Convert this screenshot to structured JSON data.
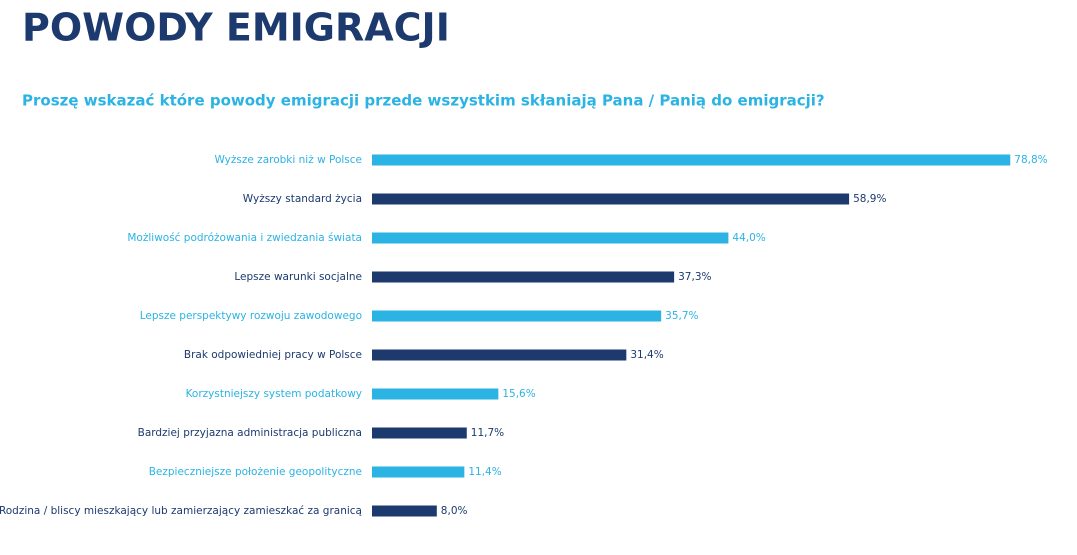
{
  "chart_data": {
    "type": "bar",
    "orientation": "horizontal",
    "title": "POWODY EMIGRACJI",
    "subtitle": "Proszę wskazać które powody emigracji przede wszystkim skłaniają Pana / Panią do emigracji?",
    "categories": [
      "Wyższe zarobki niż w Polsce",
      "Wyższy standard życia",
      "Możliwość podróżowania i zwiedzania świata",
      "Lepsze warunki socjalne",
      "Lepsze perspektywy rozwoju zawodowego",
      "Brak odpowiedniej pracy w Polsce",
      "Korzystniejszy system podatkowy",
      "Bardziej przyjazna administracja publiczna",
      "Bezpieczniejsze położenie geopolityczne",
      "Rodzina / bliscy mieszkający lub zamierzający zamieszkać za granicą"
    ],
    "values": [
      78.8,
      58.9,
      44.0,
      37.3,
      35.7,
      31.4,
      15.6,
      11.7,
      11.4,
      8.0
    ],
    "value_labels": [
      "78,8%",
      "58,9%",
      "44,0%",
      "37,3%",
      "35,7%",
      "31,4%",
      "15,6%",
      "11,7%",
      "11,4%",
      "8,0%"
    ],
    "colors": [
      "#2bb3e3",
      "#1c3a6e",
      "#2bb3e3",
      "#1c3a6e",
      "#2bb3e3",
      "#1c3a6e",
      "#2bb3e3",
      "#1c3a6e",
      "#2bb3e3",
      "#1c3a6e"
    ]
  }
}
